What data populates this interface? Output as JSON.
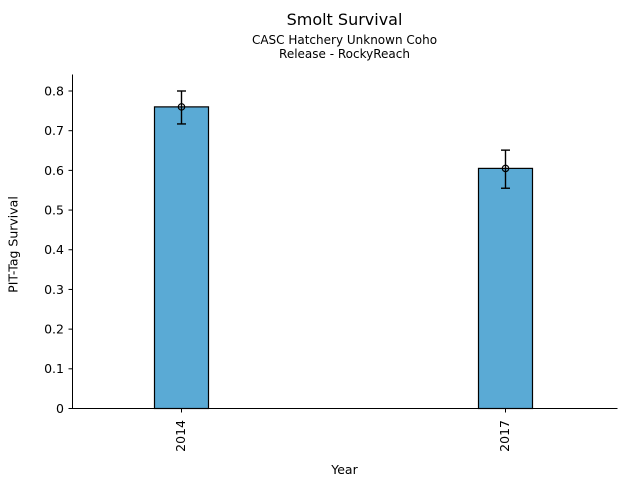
{
  "chart_data": {
    "type": "bar",
    "title": "Smolt Survival",
    "subtitle_lines": [
      "CASC Hatchery Unknown Coho",
      "Release - RockyReach"
    ],
    "xlabel": "Year",
    "ylabel": "PIT-Tag Survival",
    "categories": [
      "2014",
      "2017"
    ],
    "values": [
      0.76,
      0.605
    ],
    "error_low": [
      0.717,
      0.555
    ],
    "error_high": [
      0.8,
      0.651
    ],
    "ytick_values": [
      0,
      0.1,
      0.2,
      0.3,
      0.4,
      0.5,
      0.6,
      0.7,
      0.8
    ],
    "ytick_labels": [
      "0",
      "0.1",
      "0.2",
      "0.3",
      "0.4",
      "0.5",
      "0.6",
      "0.7",
      "0.8"
    ],
    "ylim": [
      0,
      0.84
    ],
    "grid": false,
    "legend": "none",
    "marker": "open-circle",
    "bar_color": "#5AAAD5",
    "edge_color": "#000000",
    "axis_color": "#000000"
  }
}
